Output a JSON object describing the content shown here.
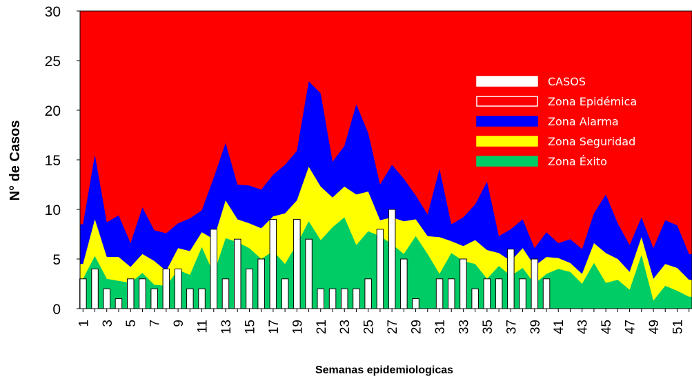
{
  "chart_data": {
    "type": "area",
    "xlabel": "Semanas epidemiologicas",
    "ylabel": "N° de Casos",
    "ylim": [
      0,
      30
    ],
    "yticks": [
      0,
      5,
      10,
      15,
      20,
      25,
      30
    ],
    "x": [
      1,
      2,
      3,
      4,
      5,
      6,
      7,
      8,
      9,
      10,
      11,
      12,
      13,
      14,
      15,
      16,
      17,
      18,
      19,
      20,
      21,
      22,
      23,
      24,
      25,
      26,
      27,
      28,
      29,
      30,
      31,
      32,
      33,
      34,
      35,
      36,
      37,
      38,
      39,
      40,
      41,
      42,
      43,
      44,
      45,
      46,
      47,
      48,
      49,
      50,
      51,
      52
    ],
    "xtick_labels": [
      "1",
      "3",
      "5",
      "7",
      "9",
      "11",
      "13",
      "15",
      "17",
      "19",
      "21",
      "23",
      "25",
      "27",
      "29",
      "31",
      "33",
      "35",
      "37",
      "39",
      "41",
      "43",
      "45",
      "47",
      "49",
      "51"
    ],
    "legend_position": "upper-right",
    "series": [
      {
        "name": "CASOS",
        "kind": "bar",
        "color": "#ffffff",
        "values": [
          3,
          4,
          2,
          1,
          3,
          3,
          2,
          4,
          4,
          2,
          2,
          8,
          3,
          7,
          4,
          5,
          9,
          3,
          9,
          7,
          2,
          2,
          2,
          2,
          3,
          8,
          10,
          5,
          1,
          0,
          3,
          3,
          5,
          2,
          3,
          3,
          6,
          3,
          5,
          3,
          0,
          0,
          0,
          0,
          0,
          0,
          0,
          0,
          0,
          0,
          0,
          0
        ]
      },
      {
        "name": "Zona Epidémica",
        "kind": "area",
        "color": "#ff0000",
        "values": [
          30,
          30,
          30,
          30,
          30,
          30,
          30,
          30,
          30,
          30,
          30,
          30,
          30,
          30,
          30,
          30,
          30,
          30,
          30,
          30,
          30,
          30,
          30,
          30,
          30,
          30,
          30,
          30,
          30,
          30,
          30,
          30,
          30,
          30,
          30,
          30,
          30,
          30,
          30,
          30,
          30,
          30,
          30,
          30,
          30,
          30,
          30,
          30,
          30,
          30,
          30,
          30
        ]
      },
      {
        "name": "Zona Alarma",
        "kind": "area",
        "color": "#0000ff",
        "values": [
          8.5,
          15.5,
          8.7,
          9.4,
          6.6,
          10.2,
          7.9,
          7.6,
          8.6,
          9.1,
          9.9,
          13.2,
          16.7,
          12.5,
          12.4,
          12.0,
          13.5,
          14.5,
          15.9,
          22.9,
          21.7,
          14.8,
          16.4,
          20.6,
          17.7,
          12.5,
          14.5,
          13.1,
          11.4,
          9.5,
          14.1,
          8.5,
          9.2,
          10.5,
          12.8,
          7.3,
          8.0,
          9.0,
          6.1,
          7.7,
          6.6,
          7.0,
          6.0,
          9.6,
          11.5,
          8.6,
          6.4,
          9.2,
          6.1,
          8.9,
          8.4,
          5.5
        ]
      },
      {
        "name": "Zona Seguridad",
        "kind": "area",
        "color": "#ffff00",
        "values": [
          4.5,
          9.0,
          5.2,
          5.2,
          4.2,
          5.5,
          4.8,
          3.8,
          6.1,
          5.8,
          7.7,
          7.0,
          10.9,
          9.0,
          8.6,
          8.1,
          9.3,
          9.6,
          10.9,
          14.3,
          12.3,
          11.2,
          12.3,
          11.5,
          11.8,
          8.9,
          9.2,
          8.8,
          9.0,
          7.3,
          7.2,
          6.8,
          6.3,
          6.9,
          5.9,
          5.6,
          4.8,
          6.1,
          4.3,
          5.2,
          5.1,
          4.6,
          3.5,
          6.6,
          5.6,
          5.0,
          3.7,
          7.2,
          3.0,
          4.5,
          4.1,
          2.9
        ]
      },
      {
        "name": "Zona Éxito",
        "kind": "area",
        "color": "#00cc66",
        "values": [
          3.0,
          5.3,
          3.0,
          2.8,
          2.6,
          3.6,
          2.4,
          2.3,
          3.9,
          3.4,
          6.2,
          3.5,
          7.1,
          6.7,
          6.1,
          5.0,
          5.8,
          4.5,
          6.5,
          8.8,
          6.9,
          8.2,
          9.2,
          6.4,
          7.8,
          7.3,
          6.5,
          5.5,
          7.3,
          5.5,
          3.5,
          5.6,
          4.8,
          4.5,
          3.0,
          4.3,
          3.3,
          4.1,
          2.5,
          3.5,
          4.0,
          3.7,
          2.5,
          4.6,
          2.6,
          2.9,
          1.9,
          5.4,
          0.8,
          2.3,
          1.8,
          1.2
        ]
      }
    ]
  }
}
